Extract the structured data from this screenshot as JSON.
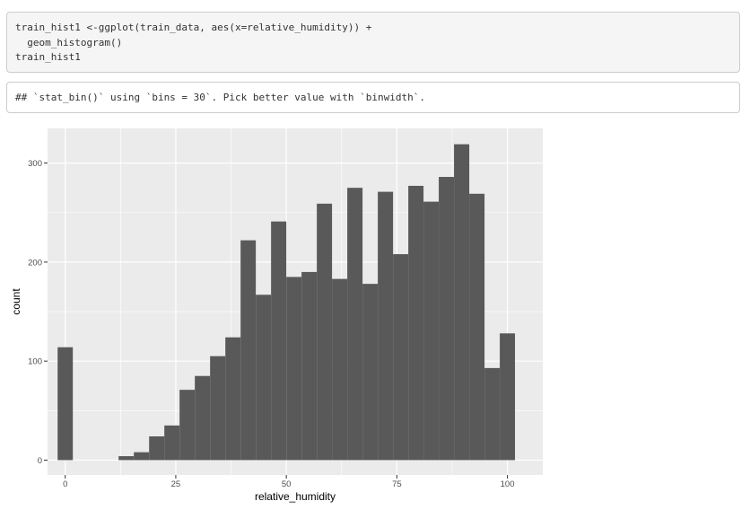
{
  "code": {
    "lines": [
      "train_hist1 <-ggplot(train_data, aes(x=relative_humidity)) +",
      "  geom_histogram()",
      "train_hist1"
    ]
  },
  "output": {
    "message": "## `stat_bin()` using `bins = 30`. Pick better value with `binwidth`."
  },
  "chart_data": {
    "type": "bar",
    "subtype": "histogram",
    "xlabel": "relative_humidity",
    "ylabel": "count",
    "xlim": [
      -4,
      108
    ],
    "ylim": [
      -15,
      335
    ],
    "x_ticks": [
      0,
      25,
      50,
      75,
      100
    ],
    "y_ticks": [
      0,
      100,
      200,
      300
    ],
    "grid": true,
    "colors": {
      "panel_bg": "#ebebeb",
      "grid": "#ffffff",
      "bar": "#595959",
      "axis_text": "#4d4d4d"
    },
    "bins": [
      {
        "x0": -1.72,
        "x1": 1.72,
        "count": 114
      },
      {
        "x0": 1.72,
        "x1": 5.17,
        "count": 0
      },
      {
        "x0": 5.17,
        "x1": 8.62,
        "count": 0
      },
      {
        "x0": 8.62,
        "x1": 12.07,
        "count": 0
      },
      {
        "x0": 12.07,
        "x1": 15.52,
        "count": 4
      },
      {
        "x0": 15.52,
        "x1": 18.97,
        "count": 8
      },
      {
        "x0": 18.97,
        "x1": 22.41,
        "count": 24
      },
      {
        "x0": 22.41,
        "x1": 25.86,
        "count": 35
      },
      {
        "x0": 25.86,
        "x1": 29.31,
        "count": 71
      },
      {
        "x0": 29.31,
        "x1": 32.76,
        "count": 85
      },
      {
        "x0": 32.76,
        "x1": 36.21,
        "count": 105
      },
      {
        "x0": 36.21,
        "x1": 39.66,
        "count": 124
      },
      {
        "x0": 39.66,
        "x1": 43.1,
        "count": 222
      },
      {
        "x0": 43.1,
        "x1": 46.55,
        "count": 167
      },
      {
        "x0": 46.55,
        "x1": 50.0,
        "count": 241
      },
      {
        "x0": 50.0,
        "x1": 53.45,
        "count": 185
      },
      {
        "x0": 53.45,
        "x1": 56.9,
        "count": 190
      },
      {
        "x0": 56.9,
        "x1": 60.34,
        "count": 259
      },
      {
        "x0": 60.34,
        "x1": 63.79,
        "count": 183
      },
      {
        "x0": 63.79,
        "x1": 67.24,
        "count": 275
      },
      {
        "x0": 67.24,
        "x1": 70.69,
        "count": 178
      },
      {
        "x0": 70.69,
        "x1": 74.14,
        "count": 271
      },
      {
        "x0": 74.14,
        "x1": 77.59,
        "count": 208
      },
      {
        "x0": 77.59,
        "x1": 81.03,
        "count": 277
      },
      {
        "x0": 81.03,
        "x1": 84.48,
        "count": 261
      },
      {
        "x0": 84.48,
        "x1": 87.93,
        "count": 286
      },
      {
        "x0": 87.93,
        "x1": 91.38,
        "count": 319
      },
      {
        "x0": 91.38,
        "x1": 94.83,
        "count": 269
      },
      {
        "x0": 94.83,
        "x1": 98.28,
        "count": 93
      },
      {
        "x0": 98.28,
        "x1": 101.72,
        "count": 128
      }
    ]
  }
}
